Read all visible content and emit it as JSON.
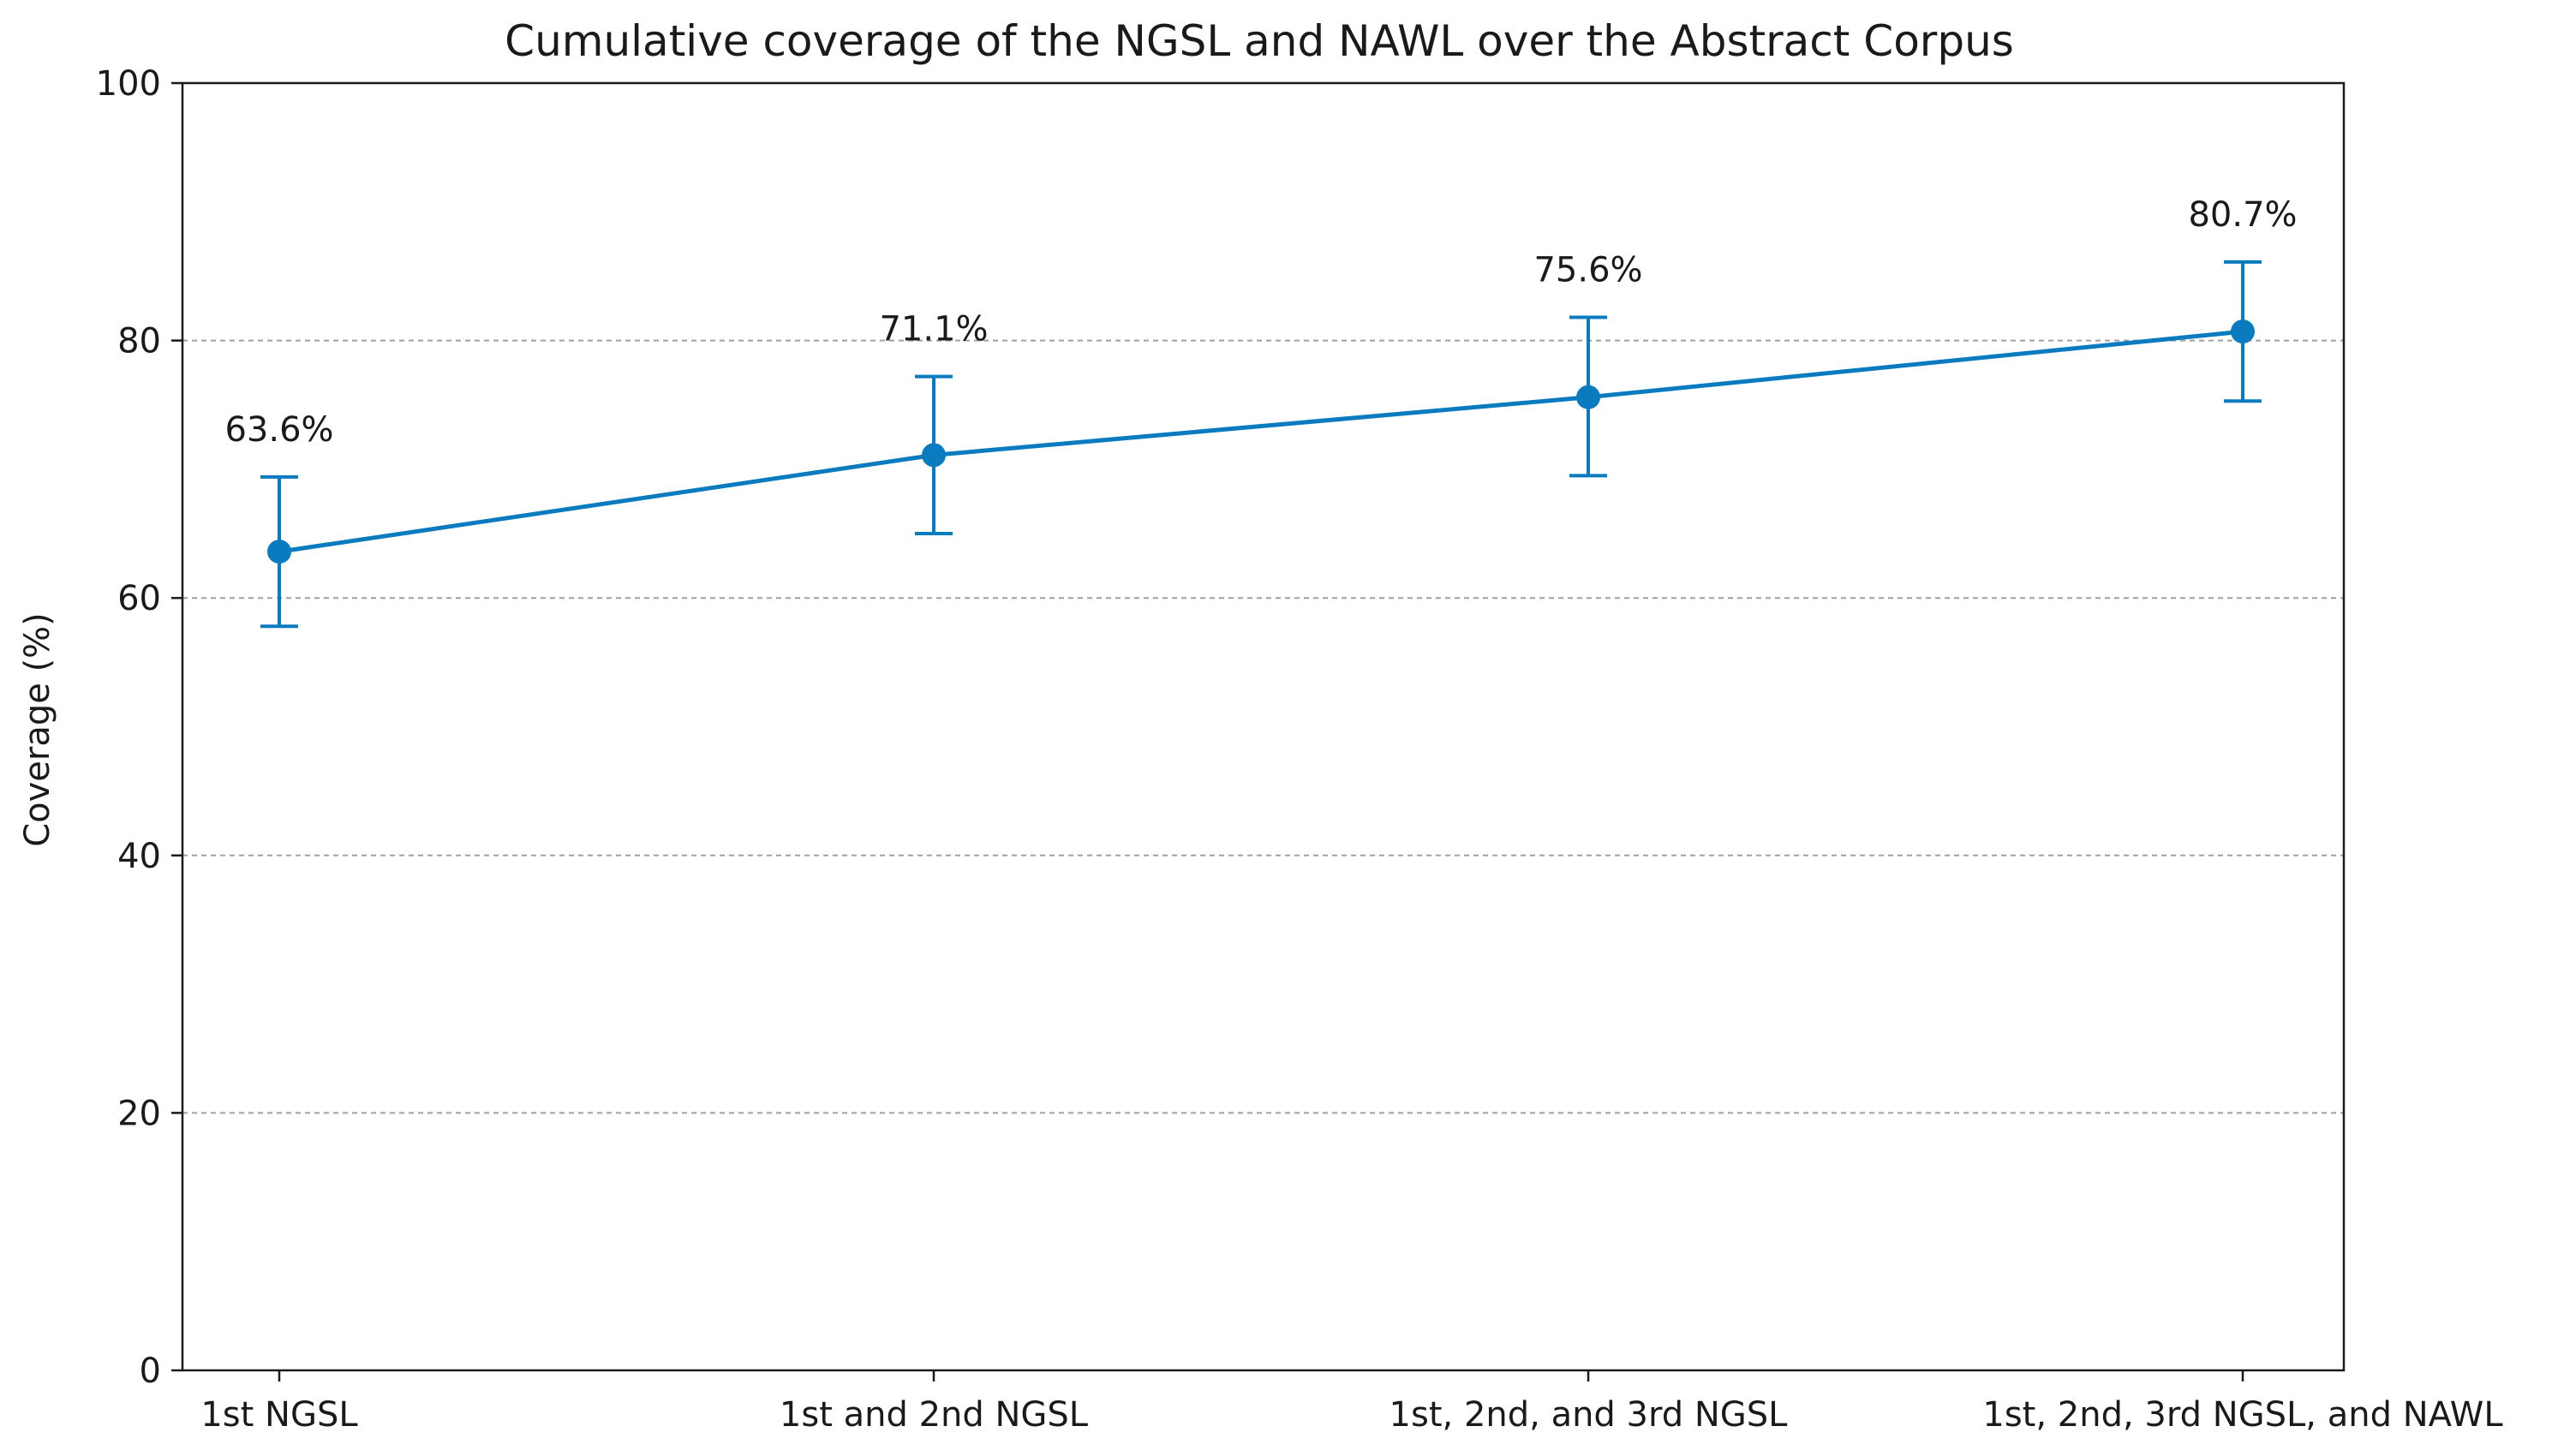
{
  "chart_data": {
    "type": "line",
    "title": "Cumulative coverage of the NGSL and NAWL over the Abstract Corpus",
    "xlabel": "",
    "ylabel": "Coverage (%)",
    "categories": [
      "1st NGSL",
      "1st and 2nd NGSL",
      "1st, 2nd, and 3rd NGSL",
      "1st, 2nd, 3rd NGSL, and NAWL"
    ],
    "series": [
      {
        "name": "Coverage",
        "values": [
          63.6,
          71.1,
          75.6,
          80.7
        ],
        "error_low": [
          57.8,
          65.0,
          69.5,
          75.3
        ],
        "error_high": [
          69.4,
          77.2,
          81.8,
          86.1
        ],
        "color": "#0a7bbf"
      }
    ],
    "data_labels": [
      "63.6%",
      "71.1%",
      "75.6%",
      "80.7%"
    ],
    "ylim": [
      0,
      100
    ],
    "yticks": [
      0,
      20,
      40,
      60,
      80,
      100
    ],
    "ytick_labels": [
      "0",
      "20",
      "40",
      "60",
      "80",
      "100"
    ],
    "grid": "horizontal dashed",
    "grid_color": "#a0a0a0"
  }
}
